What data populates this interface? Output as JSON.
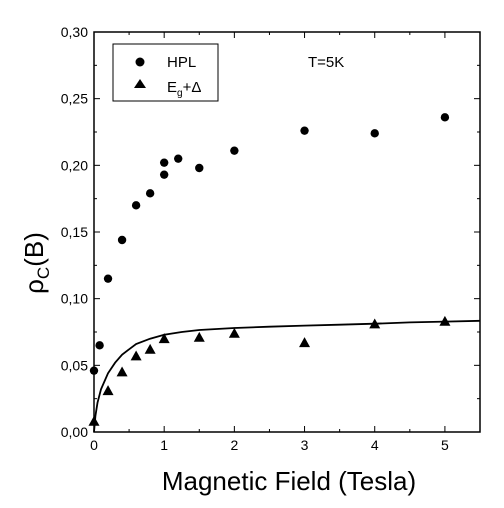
{
  "chart_data": {
    "type": "scatter",
    "title": "",
    "xlabel": "Magnetic Field (Tesla)",
    "ylabel_main": "ρ",
    "ylabel_sub": "C",
    "ylabel_tail": "(B)",
    "xlim": [
      0,
      5.5
    ],
    "ylim": [
      0,
      0.3
    ],
    "x_ticks": [
      "0",
      "1",
      "2",
      "3",
      "4",
      "5"
    ],
    "y_ticks": [
      "0,00",
      "0,05",
      "0,10",
      "0,15",
      "0,20",
      "0,25",
      "0,30"
    ],
    "grid": false,
    "legend_position": "top-left",
    "annotation": "T=5K",
    "series": [
      {
        "name": "HPL",
        "legend_main": "HPL",
        "marker": "circle",
        "color": "#000000",
        "points": [
          [
            0.0,
            0.046
          ],
          [
            0.08,
            0.065
          ],
          [
            0.2,
            0.115
          ],
          [
            0.4,
            0.144
          ],
          [
            0.6,
            0.17
          ],
          [
            0.8,
            0.179
          ],
          [
            1.0,
            0.193
          ],
          [
            1.0,
            0.202
          ],
          [
            1.2,
            0.205
          ],
          [
            1.5,
            0.198
          ],
          [
            2.0,
            0.211
          ],
          [
            3.0,
            0.226
          ],
          [
            4.0,
            0.224
          ],
          [
            5.0,
            0.236
          ]
        ]
      },
      {
        "name": "Eg+Δ",
        "legend_main": "E",
        "legend_sub": "g",
        "legend_tail": "+Δ",
        "marker": "triangle",
        "color": "#000000",
        "points": [
          [
            0.0,
            0.008
          ],
          [
            0.2,
            0.031
          ],
          [
            0.4,
            0.045
          ],
          [
            0.6,
            0.057
          ],
          [
            0.8,
            0.062
          ],
          [
            1.0,
            0.07
          ],
          [
            1.5,
            0.071
          ],
          [
            2.0,
            0.074
          ],
          [
            3.0,
            0.067
          ],
          [
            4.0,
            0.081
          ],
          [
            5.0,
            0.083
          ]
        ]
      }
    ],
    "fit_curve": {
      "points": [
        [
          0.0,
          0.0
        ],
        [
          0.02,
          0.012
        ],
        [
          0.05,
          0.022
        ],
        [
          0.1,
          0.032
        ],
        [
          0.2,
          0.044
        ],
        [
          0.3,
          0.052
        ],
        [
          0.4,
          0.058
        ],
        [
          0.5,
          0.062
        ],
        [
          0.6,
          0.066
        ],
        [
          0.8,
          0.07
        ],
        [
          1.0,
          0.073
        ],
        [
          1.25,
          0.075
        ],
        [
          1.5,
          0.0765
        ],
        [
          2.0,
          0.078
        ],
        [
          2.5,
          0.079
        ],
        [
          3.0,
          0.0798
        ],
        [
          3.5,
          0.0805
        ],
        [
          4.0,
          0.0812
        ],
        [
          4.5,
          0.0822
        ],
        [
          5.0,
          0.0828
        ],
        [
          5.5,
          0.0834
        ]
      ]
    }
  }
}
